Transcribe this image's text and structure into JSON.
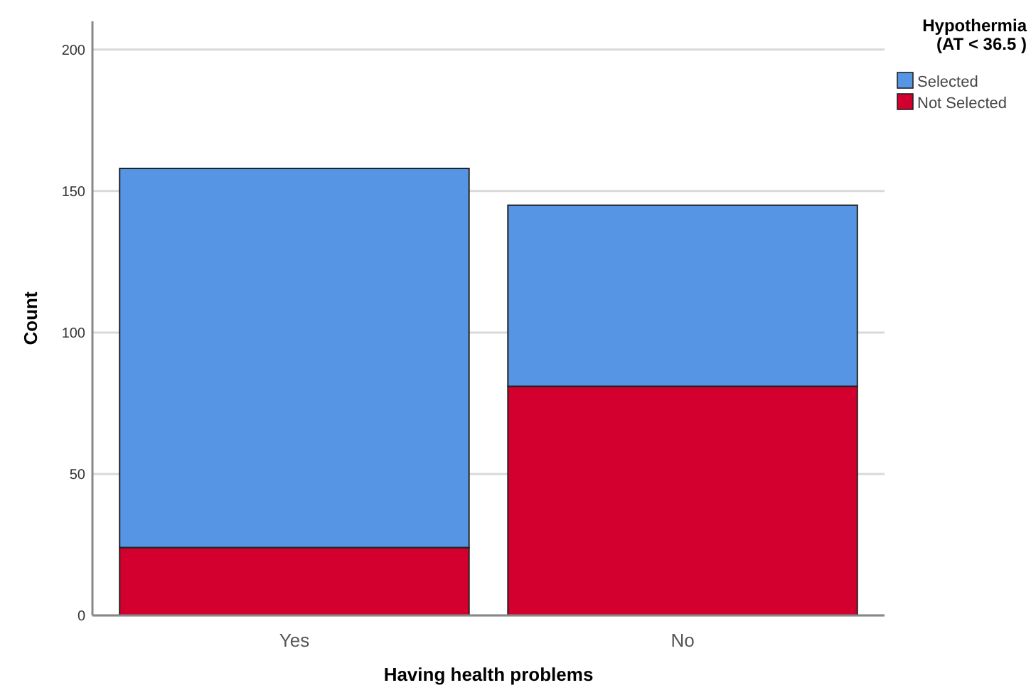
{
  "chart_data": {
    "type": "bar",
    "xlabel": "Having health problems",
    "ylabel": "Count",
    "legend_title": "Hypothermia\n(AT < 36.5 )",
    "categories": [
      "Yes",
      "No"
    ],
    "stacked": true,
    "series": [
      {
        "name": "Not Selected",
        "color": "#d3002f",
        "values": [
          24,
          81
        ]
      },
      {
        "name": "Selected",
        "color": "#5595e3",
        "values": [
          134,
          64
        ]
      }
    ],
    "ylim": [
      0,
      210
    ],
    "yticks": [
      0,
      50,
      100,
      150,
      200
    ],
    "grid": "y",
    "legend": "top right"
  }
}
